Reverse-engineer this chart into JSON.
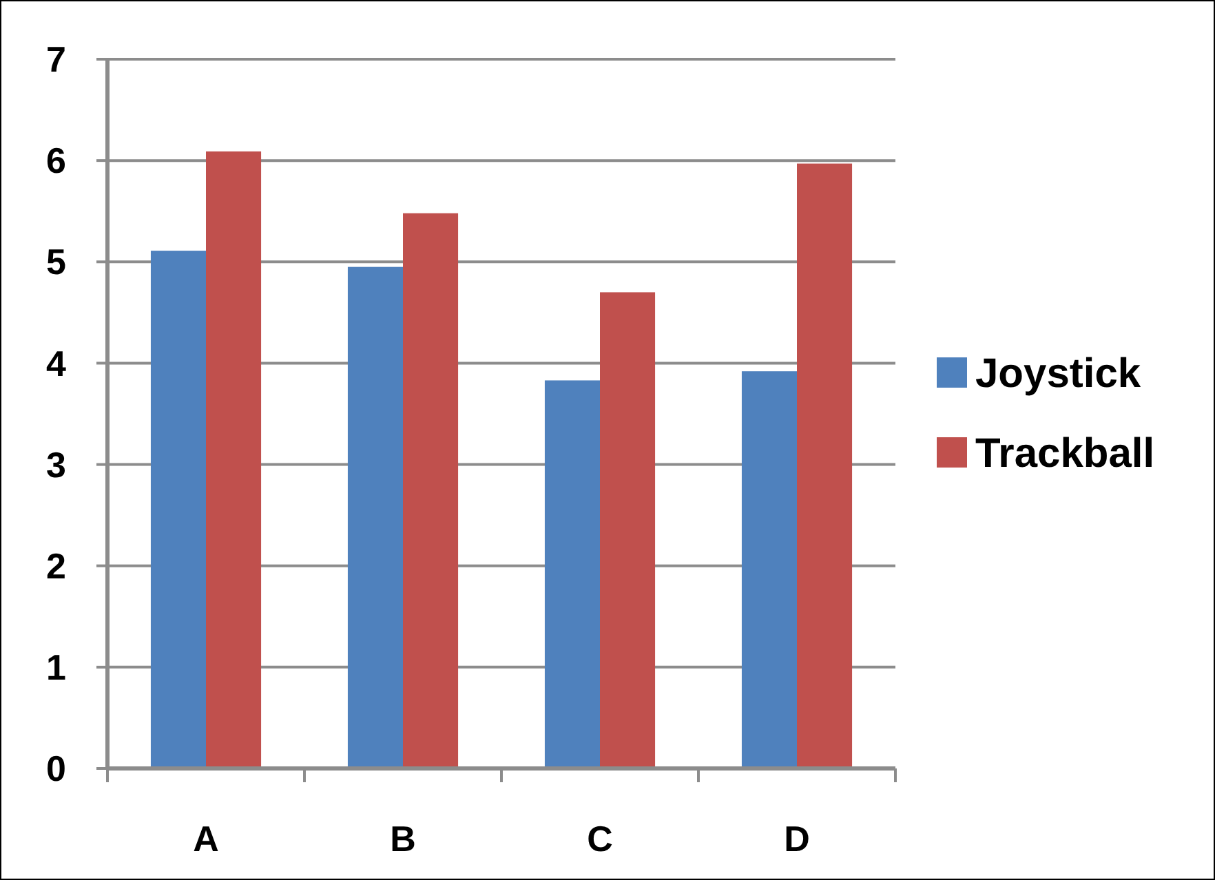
{
  "chart_data": {
    "type": "bar",
    "categories": [
      "A",
      "B",
      "C",
      "D"
    ],
    "series": [
      {
        "name": "Joystick",
        "color": "#4f81bd",
        "values": [
          5.11,
          4.95,
          3.83,
          3.92
        ]
      },
      {
        "name": "Trackball",
        "color": "#c0504d",
        "values": [
          6.09,
          5.48,
          4.7,
          5.97
        ]
      }
    ],
    "ylim": [
      0,
      7
    ],
    "yticks": [
      0,
      1,
      2,
      3,
      4,
      5,
      6,
      7
    ],
    "grid": "y",
    "legend": "right"
  }
}
